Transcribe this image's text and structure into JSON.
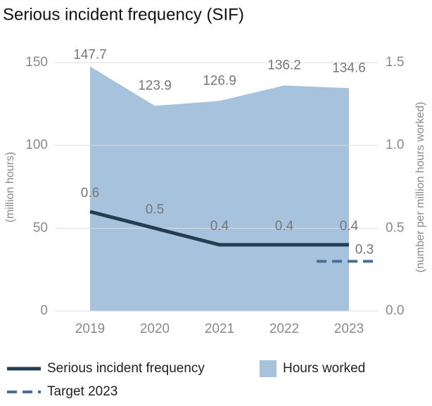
{
  "chart_data": {
    "type": "combo",
    "title": "Serious incident frequency (SIF)",
    "categories": [
      "2019",
      "2020",
      "2021",
      "2022",
      "2023"
    ],
    "ylabel": "(million hours)",
    "y2label": "(number per million hours worked)",
    "ylim": [
      0,
      150
    ],
    "yticks": [
      0,
      50,
      100,
      150
    ],
    "y2lim": [
      0,
      1.5
    ],
    "y2ticks": [
      {
        "value": 0,
        "label": "0.0"
      },
      0.5,
      {
        "value": 1,
        "label": "1.0"
      },
      1.5
    ],
    "grid": true,
    "series": [
      {
        "name": "Hours worked",
        "type": "area",
        "color": "#a7c2dc",
        "values": [
          147.7,
          123.9,
          126.9,
          136.2,
          134.6
        ]
      },
      {
        "name": "Serious incident frequency",
        "type": "line",
        "axis": "y2",
        "color": "#253d52",
        "values": [
          0.6,
          0.5,
          0.4,
          0.4,
          0.4
        ]
      },
      {
        "name": "Target 2023",
        "type": "dashed",
        "axis": "y2",
        "color": "#4a6f96",
        "values": [
          null,
          null,
          null,
          null,
          0.3
        ]
      }
    ]
  }
}
